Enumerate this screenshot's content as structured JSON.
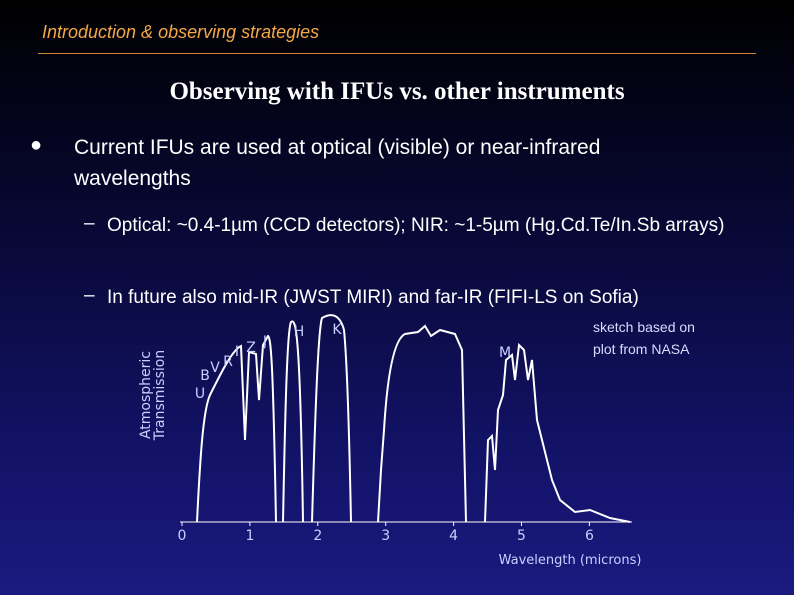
{
  "header": {
    "title": "Introduction & observing strategies"
  },
  "slide": {
    "title": "Observing with IFUs vs. other instruments",
    "bullet": "Current IFUs are used at optical (visible) or near-infrared wavelengths",
    "sub_bullets": [
      "Optical: ~0.4-1µm (CCD detectors); NIR: ~1-5µm (Hg.Cd.Te/In.Sb arrays)",
      "In future also mid-IR (JWST MIRI) and far-IR (FIFI-LS on Sofia)"
    ]
  },
  "figure": {
    "y_label": [
      "Atmospheric",
      "Transmission"
    ],
    "x_label": "Wavelength (microns)",
    "xticks": [
      0,
      1,
      2,
      3,
      4,
      5,
      6
    ],
    "band_labels": [
      "U",
      "B",
      "V",
      "R",
      "I",
      "Z",
      "J",
      "H",
      "K",
      "M"
    ],
    "note": [
      "sketch based on",
      "plot from NASA"
    ]
  }
}
